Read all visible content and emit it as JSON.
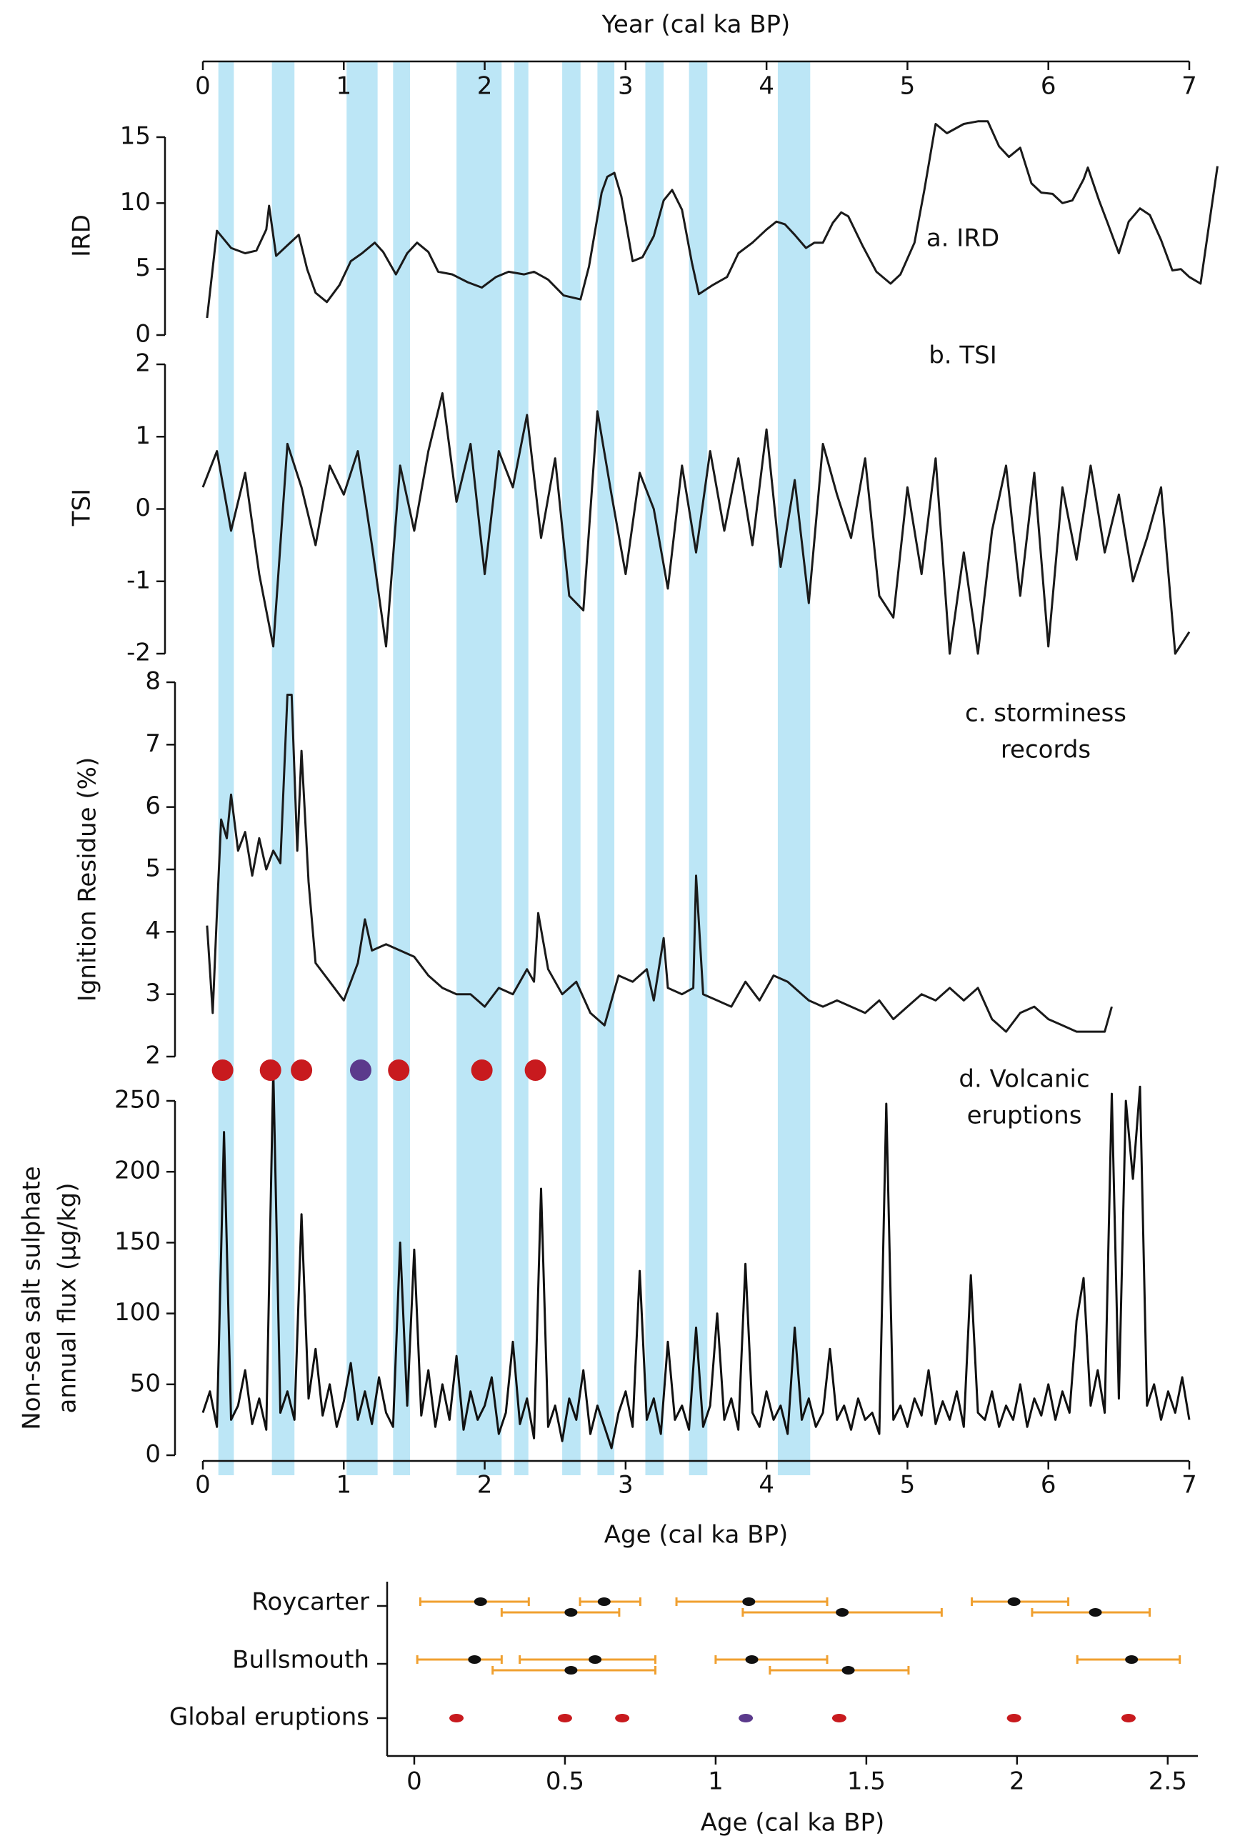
{
  "chart_data": [
    {
      "type": "multi-panel",
      "top_xlabel": "Year (cal ka BP)",
      "xlabel": "Age (cal ka BP)",
      "xlim": [
        0,
        7
      ],
      "xticks": [
        0,
        1,
        2,
        3,
        4,
        5,
        6,
        7
      ],
      "shade_color": "#bce6f6",
      "shaded_periods": [
        [
          0.11,
          0.22
        ],
        [
          0.49,
          0.65
        ],
        [
          1.02,
          1.24
        ],
        [
          1.35,
          1.47
        ],
        [
          1.8,
          2.12
        ],
        [
          2.21,
          2.31
        ],
        [
          2.55,
          2.68
        ],
        [
          2.8,
          2.92
        ],
        [
          3.14,
          3.27
        ],
        [
          3.45,
          3.58
        ],
        [
          4.08,
          4.31
        ]
      ],
      "panels": [
        {
          "type": "line",
          "label": [
            "a. IRD"
          ],
          "ylabel": [
            "IRD"
          ],
          "ylim": [
            0,
            15
          ],
          "yticks": [
            0,
            5,
            10,
            15
          ],
          "color": "#1a1a1a",
          "x": [
            0.03,
            0.1,
            0.2,
            0.3,
            0.38,
            0.45,
            0.47,
            0.52,
            0.6,
            0.68,
            0.74,
            0.8,
            0.88,
            0.97,
            1.05,
            1.13,
            1.22,
            1.28,
            1.37,
            1.45,
            1.52,
            1.6,
            1.67,
            1.77,
            1.88,
            1.98,
            2.08,
            2.17,
            2.28,
            2.35,
            2.45,
            2.56,
            2.68,
            2.74,
            2.83,
            2.87,
            2.92,
            2.97,
            3.05,
            3.12,
            3.2,
            3.27,
            3.33,
            3.4,
            3.47,
            3.52,
            3.62,
            3.72,
            3.8,
            3.9,
            4.0,
            4.07,
            4.13,
            4.2,
            4.28,
            4.34,
            4.4,
            4.47,
            4.53,
            4.58,
            4.68,
            4.78,
            4.88,
            4.95,
            5.05,
            5.12,
            5.2,
            5.28,
            5.4,
            5.5,
            5.57,
            5.65,
            5.72,
            5.8,
            5.88,
            5.95,
            6.03,
            6.1,
            6.17,
            6.25,
            6.28,
            6.36,
            6.42,
            6.5,
            6.57,
            6.65,
            6.72,
            6.8,
            6.88,
            6.94,
            7.0,
            7.08,
            7.2
          ],
          "values": [
            1.3,
            7.9,
            6.6,
            6.2,
            6.4,
            8.0,
            9.8,
            6.0,
            6.8,
            7.6,
            5.0,
            3.2,
            2.5,
            3.8,
            5.6,
            6.2,
            7.0,
            6.3,
            4.6,
            6.2,
            7.0,
            6.3,
            4.8,
            4.6,
            4.0,
            3.6,
            4.4,
            4.8,
            4.6,
            4.8,
            4.2,
            3.0,
            2.7,
            5.2,
            10.8,
            12.0,
            12.3,
            10.5,
            5.6,
            5.9,
            7.5,
            10.2,
            11.0,
            9.5,
            5.5,
            3.1,
            3.8,
            4.4,
            6.2,
            7.0,
            8.0,
            8.6,
            8.4,
            7.6,
            6.6,
            7.0,
            7.0,
            8.5,
            9.3,
            9.0,
            6.8,
            4.8,
            3.9,
            4.6,
            7.0,
            11.0,
            16.0,
            15.3,
            16.0,
            16.2,
            16.2,
            14.3,
            13.5,
            14.2,
            11.5,
            10.8,
            10.7,
            10.0,
            10.2,
            11.8,
            12.7,
            10.2,
            8.5,
            6.2,
            8.6,
            9.6,
            9.1,
            7.2,
            4.9,
            5.0,
            4.4,
            3.9,
            12.8
          ]
        },
        {
          "type": "line",
          "label": [
            "b. TSI"
          ],
          "ylabel": [
            "TSI"
          ],
          "ylim": [
            -2,
            2
          ],
          "yticks": [
            -2,
            -1,
            0,
            1,
            2
          ],
          "color": "#1a1a1a",
          "x": [
            0,
            0.1,
            0.2,
            0.3,
            0.4,
            0.5,
            0.6,
            0.7,
            0.8,
            0.9,
            1.0,
            1.1,
            1.2,
            1.3,
            1.4,
            1.5,
            1.6,
            1.7,
            1.8,
            1.9,
            2.0,
            2.1,
            2.2,
            2.3,
            2.4,
            2.5,
            2.6,
            2.7,
            2.8,
            2.9,
            3.0,
            3.1,
            3.2,
            3.3,
            3.4,
            3.5,
            3.6,
            3.7,
            3.8,
            3.9,
            4.0,
            4.1,
            4.2,
            4.3,
            4.4,
            4.5,
            4.6,
            4.7,
            4.8,
            4.9,
            5.0,
            5.1,
            5.2,
            5.3,
            5.4,
            5.5,
            5.6,
            5.7,
            5.8,
            5.9,
            6.0,
            6.1,
            6.2,
            6.3,
            6.4,
            6.5,
            6.6,
            6.7,
            6.8,
            6.9,
            7.0
          ],
          "values": [
            0.3,
            0.8,
            -0.3,
            0.5,
            -0.9,
            -1.9,
            0.9,
            0.3,
            -0.5,
            0.6,
            0.2,
            0.8,
            -0.5,
            -1.9,
            0.6,
            -0.3,
            0.8,
            1.6,
            0.1,
            0.9,
            -0.9,
            0.8,
            0.3,
            1.3,
            -0.4,
            0.7,
            -1.2,
            -1.4,
            1.35,
            0.2,
            -0.9,
            0.5,
            0.0,
            -1.1,
            0.6,
            -0.6,
            0.8,
            -0.3,
            0.7,
            -0.5,
            1.1,
            -0.8,
            0.4,
            -1.3,
            0.9,
            0.2,
            -0.4,
            0.7,
            -1.2,
            -1.5,
            0.3,
            -0.9,
            0.7,
            -2.0,
            -0.6,
            -2.0,
            -0.3,
            0.6,
            -1.2,
            0.5,
            -1.9,
            0.3,
            -0.7,
            0.6,
            -0.6,
            0.2,
            -1.0,
            -0.4,
            0.3,
            -2.0,
            -1.7
          ]
        },
        {
          "type": "line",
          "label": [
            "c. storminess",
            "records"
          ],
          "ylabel": [
            "Ignition Residue (%)"
          ],
          "ylim": [
            2,
            8
          ],
          "yticks": [
            2,
            3,
            4,
            5,
            6,
            7,
            8
          ],
          "color": "#1a1a1a",
          "x": [
            0.03,
            0.07,
            0.1,
            0.13,
            0.17,
            0.2,
            0.25,
            0.3,
            0.35,
            0.4,
            0.45,
            0.5,
            0.55,
            0.6,
            0.63,
            0.67,
            0.7,
            0.75,
            0.8,
            0.9,
            1.0,
            1.1,
            1.15,
            1.2,
            1.3,
            1.4,
            1.5,
            1.6,
            1.7,
            1.8,
            1.9,
            2.0,
            2.1,
            2.2,
            2.3,
            2.35,
            2.38,
            2.45,
            2.55,
            2.65,
            2.75,
            2.85,
            2.95,
            3.05,
            3.15,
            3.2,
            3.27,
            3.3,
            3.4,
            3.48,
            3.5,
            3.55,
            3.65,
            3.75,
            3.85,
            3.95,
            4.05,
            4.15,
            4.3,
            4.4,
            4.5,
            4.6,
            4.7,
            4.8,
            4.9,
            5.0,
            5.1,
            5.2,
            5.3,
            5.4,
            5.5,
            5.6,
            5.7,
            5.8,
            5.9,
            6.0,
            6.1,
            6.2,
            6.3,
            6.4,
            6.45
          ],
          "values": [
            4.1,
            2.7,
            4.3,
            5.8,
            5.5,
            6.2,
            5.3,
            5.6,
            4.9,
            5.5,
            5.0,
            5.3,
            5.1,
            7.8,
            7.8,
            5.3,
            6.9,
            4.8,
            3.5,
            3.2,
            2.9,
            3.5,
            4.2,
            3.7,
            3.8,
            3.7,
            3.6,
            3.3,
            3.1,
            3.0,
            3.0,
            2.8,
            3.1,
            3.0,
            3.4,
            3.2,
            4.3,
            3.4,
            3.0,
            3.2,
            2.7,
            2.5,
            3.3,
            3.2,
            3.4,
            2.9,
            3.9,
            3.1,
            3.0,
            3.1,
            4.9,
            3.0,
            2.9,
            2.8,
            3.2,
            2.9,
            3.3,
            3.2,
            2.9,
            2.8,
            2.9,
            2.8,
            2.7,
            2.9,
            2.6,
            2.8,
            3.0,
            2.9,
            3.1,
            2.9,
            3.1,
            2.6,
            2.4,
            2.7,
            2.8,
            2.6,
            2.5,
            2.4,
            2.4,
            2.4,
            2.8
          ]
        },
        {
          "type": "line",
          "label": [
            "d. Volcanic",
            "eruptions"
          ],
          "ylabel": [
            "Non-sea salt sulphate",
            "annual flux  (µg/kg)"
          ],
          "ylim": [
            0,
            250
          ],
          "yticks": [
            0,
            50,
            100,
            150,
            200,
            250
          ],
          "color": "#111111",
          "markers": {
            "values": [
              0.14,
              0.48,
              0.7,
              1.12,
              1.39,
              1.98,
              2.36
            ],
            "colors": [
              "#c81a1e",
              "#c81a1e",
              "#c81a1e",
              "#5b3a8c",
              "#c81a1e",
              "#c81a1e",
              "#c81a1e"
            ]
          },
          "x": [
            0,
            0.05,
            0.1,
            0.15,
            0.2,
            0.25,
            0.3,
            0.35,
            0.4,
            0.45,
            0.5,
            0.55,
            0.6,
            0.65,
            0.7,
            0.75,
            0.8,
            0.85,
            0.9,
            0.95,
            1.0,
            1.05,
            1.1,
            1.15,
            1.2,
            1.25,
            1.3,
            1.35,
            1.4,
            1.45,
            1.5,
            1.55,
            1.6,
            1.65,
            1.7,
            1.75,
            1.8,
            1.85,
            1.9,
            1.95,
            2.0,
            2.05,
            2.1,
            2.15,
            2.2,
            2.25,
            2.3,
            2.35,
            2.4,
            2.45,
            2.5,
            2.55,
            2.6,
            2.65,
            2.7,
            2.75,
            2.8,
            2.85,
            2.9,
            2.95,
            3.0,
            3.05,
            3.1,
            3.15,
            3.2,
            3.25,
            3.3,
            3.35,
            3.4,
            3.45,
            3.5,
            3.55,
            3.6,
            3.65,
            3.7,
            3.75,
            3.8,
            3.85,
            3.9,
            3.95,
            4.0,
            4.05,
            4.1,
            4.15,
            4.2,
            4.25,
            4.3,
            4.35,
            4.4,
            4.45,
            4.5,
            4.55,
            4.6,
            4.65,
            4.7,
            4.75,
            4.8,
            4.85,
            4.9,
            4.95,
            5.0,
            5.05,
            5.1,
            5.15,
            5.2,
            5.25,
            5.3,
            5.35,
            5.4,
            5.45,
            5.5,
            5.55,
            5.6,
            5.65,
            5.7,
            5.75,
            5.8,
            5.85,
            5.9,
            5.95,
            6.0,
            6.05,
            6.1,
            6.15,
            6.2,
            6.25,
            6.3,
            6.35,
            6.4,
            6.45,
            6.5,
            6.55,
            6.6,
            6.65,
            6.7,
            6.75,
            6.8,
            6.85,
            6.9,
            6.95,
            7.0
          ],
          "values": [
            30,
            45,
            20,
            228,
            25,
            35,
            60,
            22,
            40,
            18,
            272,
            30,
            45,
            25,
            170,
            40,
            75,
            28,
            50,
            20,
            38,
            65,
            25,
            45,
            22,
            55,
            30,
            20,
            150,
            35,
            145,
            28,
            60,
            20,
            50,
            25,
            70,
            18,
            45,
            25,
            35,
            55,
            15,
            30,
            80,
            22,
            40,
            12,
            188,
            20,
            35,
            10,
            40,
            25,
            60,
            15,
            35,
            20,
            5,
            30,
            45,
            20,
            130,
            25,
            40,
            15,
            80,
            25,
            35,
            18,
            90,
            20,
            35,
            100,
            25,
            40,
            18,
            135,
            30,
            20,
            45,
            25,
            35,
            15,
            90,
            25,
            40,
            20,
            30,
            75,
            25,
            35,
            18,
            40,
            25,
            30,
            15,
            248,
            25,
            35,
            20,
            40,
            28,
            60,
            22,
            38,
            25,
            45,
            20,
            127,
            30,
            25,
            45,
            20,
            35,
            25,
            50,
            20,
            40,
            28,
            50,
            25,
            45,
            30,
            95,
            125,
            35,
            60,
            30,
            255,
            40,
            250,
            195,
            260,
            35,
            50,
            25,
            45,
            30,
            55,
            25
          ]
        }
      ]
    },
    {
      "type": "errorbar",
      "xlabel": "Age (cal ka BP)",
      "xlim": [
        -0.09,
        2.6
      ],
      "xticks": [
        0,
        0.5,
        1,
        1.5,
        2,
        2.5
      ],
      "point_color": "#111111",
      "error_color": "#f0a030",
      "rows": [
        {
          "name": "Roycarter",
          "values": [
            0.22,
            0.52,
            0.63,
            1.11,
            1.42,
            1.99,
            2.26
          ],
          "lower": [
            0.02,
            0.29,
            0.55,
            0.87,
            1.09,
            1.85,
            2.05
          ],
          "upper": [
            0.38,
            0.68,
            0.75,
            1.37,
            1.75,
            2.17,
            2.44
          ]
        },
        {
          "name": "Bullsmouth",
          "values": [
            0.2,
            0.52,
            0.6,
            1.12,
            1.44,
            2.38
          ],
          "lower": [
            0.01,
            0.26,
            0.35,
            1.0,
            1.18,
            2.2
          ],
          "upper": [
            0.29,
            0.8,
            0.8,
            1.37,
            1.64,
            2.54
          ]
        },
        {
          "name": "Global eruptions",
          "values": [
            0.14,
            0.5,
            0.69,
            1.1,
            1.41,
            1.99,
            2.37
          ],
          "colors": [
            "#c81a1e",
            "#c81a1e",
            "#c81a1e",
            "#5b3a8c",
            "#c81a1e",
            "#c81a1e",
            "#c81a1e"
          ]
        }
      ]
    }
  ]
}
